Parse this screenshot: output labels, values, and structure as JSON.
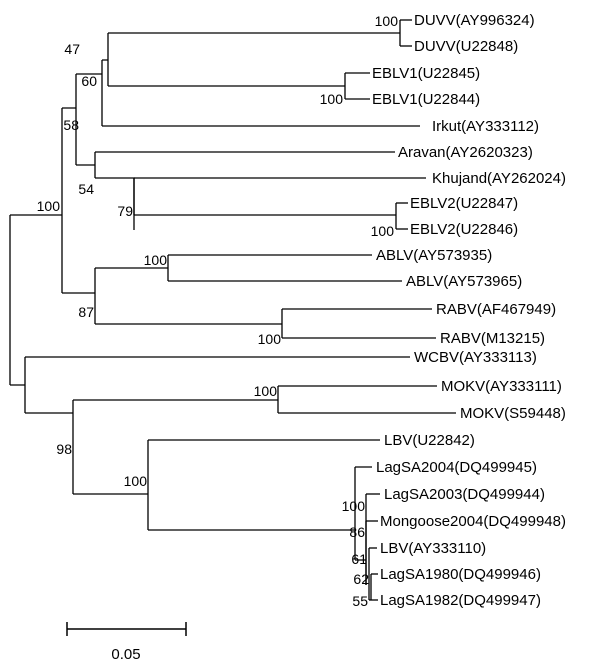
{
  "tree": {
    "taxa": [
      "DUVV(AY996324)",
      "DUVV(U22848)",
      "EBLV1(U22845)",
      "EBLV1(U22844)",
      "Irkut(AY333112)",
      "Aravan(AY2620323)",
      "Khujand(AY262024)",
      "EBLV2(U22847)",
      "EBLV2(U22846)",
      "ABLV(AY573935)",
      "ABLV(AY573965)",
      "RABV(AF467949)",
      "RABV(M13215)",
      "WCBV(AY333113)",
      "MOKV(AY333111)",
      "MOKV(S59448)",
      "LBV(U22842)",
      "LagSA2004(DQ499945)",
      "LagSA2003(DQ499944)",
      "Mongoose2004(DQ499948)",
      "LBV(AY333110)",
      "LagSA1980(DQ499946)",
      "LagSA1982(DQ499947)"
    ],
    "bootstrap": [
      "100",
      "47",
      "60",
      "100",
      "58",
      "54",
      "79",
      "100",
      "100",
      "100",
      "87",
      "100",
      "100",
      "100",
      "98",
      "100",
      "100",
      "86",
      "61",
      "62",
      "55"
    ]
  },
  "scale_bar": {
    "label": "0.05"
  }
}
